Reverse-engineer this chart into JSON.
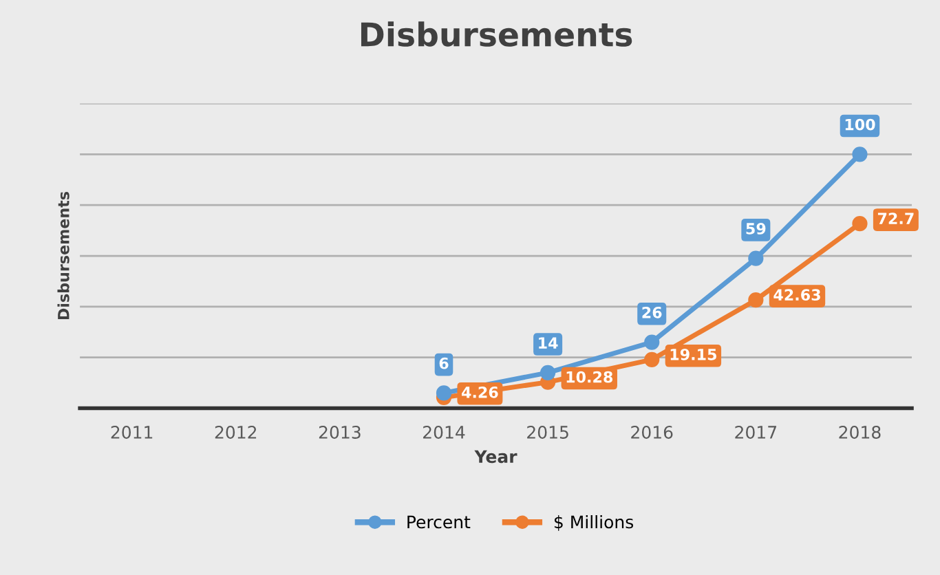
{
  "chart_data": {
    "type": "line",
    "title": "Disbursements",
    "xlabel": "Year",
    "ylabel": "Disbursements",
    "categories": [
      "2011",
      "2012",
      "2013",
      "2014",
      "2015",
      "2016",
      "2017",
      "2018"
    ],
    "series": [
      {
        "name": "Percent",
        "color": "#5b9bd5",
        "values": [
          null,
          null,
          null,
          6,
          14,
          26,
          59,
          100
        ]
      },
      {
        "name": "$ Millions",
        "color": "#ed7d31",
        "values": [
          null,
          null,
          null,
          4.26,
          10.28,
          19.15,
          42.63,
          72.7
        ]
      }
    ],
    "ylim": [
      0,
      120
    ],
    "yticks": [
      {
        "value": 0,
        "label": null
      },
      {
        "value": 20,
        "label": null
      },
      {
        "value": 40,
        "label": null
      },
      {
        "value": 60,
        "label": null
      },
      {
        "value": 80,
        "label": null
      },
      {
        "value": 100,
        "label": null
      },
      {
        "value": 120,
        "label": null
      }
    ],
    "tick_labels": "x",
    "grid": "y",
    "legend": "bottom",
    "marker": "circle",
    "line_style": "solid",
    "data_labels": true
  }
}
